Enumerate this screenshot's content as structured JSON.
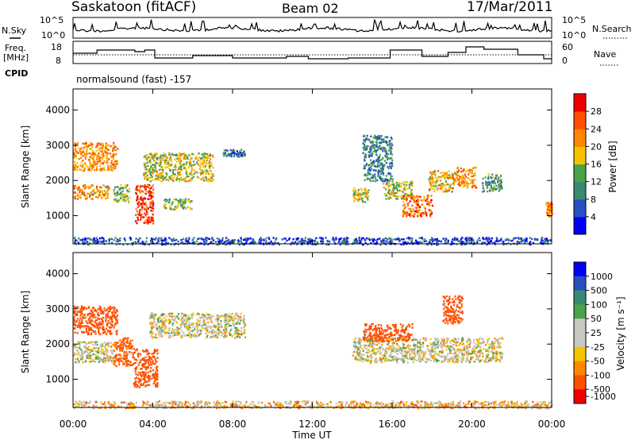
{
  "header": {
    "station": "Saskatoon (fitACF)",
    "beam": "Beam 02",
    "date": "17/Mar/2011"
  },
  "noise_panel": {
    "left_label": "N.Sky",
    "right_label": "N.Search",
    "y_top_left": "10^5",
    "y_bottom_left": "10^0",
    "y_top_right": "10^5",
    "y_bottom_right": "10^0"
  },
  "freq_panel": {
    "left_label_1": "Freq.",
    "left_label_2": "[MHz]",
    "right_label": "Nave",
    "freq_ticks": [
      "18",
      "8"
    ],
    "nave_ticks": [
      "60",
      "0"
    ]
  },
  "cpid": {
    "label": "CPID",
    "value": "normalsound (fast) -157"
  },
  "colors": {
    "power": [
      "#0000ff",
      "#2850c0",
      "#3a8a72",
      "#4aa34a",
      "#f5c400",
      "#ff8800",
      "#ff5000",
      "#ee0000"
    ],
    "velocity": [
      "#0000ff",
      "#2850c0",
      "#3a8a72",
      "#4aa34a",
      "#c8c8c2",
      "#c8c8c2",
      "#f5c400",
      "#ff8800",
      "#ff5000",
      "#ee0000"
    ],
    "ground": "#bdbdb6"
  },
  "chart_data": [
    {
      "type": "heatmap",
      "name": "power",
      "ylabel": "Slant Range [km]",
      "ylim": [
        200,
        4600
      ],
      "yticks": [
        "1000",
        "2000",
        "3000",
        "4000"
      ],
      "colorbar": {
        "label": "Power [dB]",
        "ticks": [
          "4",
          "8",
          "12",
          "16",
          "20",
          "24",
          "28"
        ],
        "range": [
          0,
          32
        ]
      },
      "regions": [
        {
          "t0": 0.0,
          "t1": 2.2,
          "r0": 2300,
          "r1": 3100,
          "v": 22
        },
        {
          "t0": 0.0,
          "t1": 1.8,
          "r0": 1500,
          "r1": 1900,
          "v": 21
        },
        {
          "t0": 2.0,
          "t1": 2.8,
          "r0": 1400,
          "r1": 1900,
          "v": 14
        },
        {
          "t0": 3.1,
          "t1": 4.0,
          "r0": 800,
          "r1": 1900,
          "v": 27
        },
        {
          "t0": 3.5,
          "t1": 7.0,
          "r0": 2000,
          "r1": 2800,
          "v": 17
        },
        {
          "t0": 4.5,
          "t1": 6.0,
          "r0": 1200,
          "r1": 1500,
          "v": 14
        },
        {
          "t0": 7.5,
          "t1": 8.6,
          "r0": 2700,
          "r1": 2900,
          "v": 9
        },
        {
          "t0": 14.0,
          "t1": 14.8,
          "r0": 1400,
          "r1": 1800,
          "v": 18
        },
        {
          "t0": 14.5,
          "t1": 16.0,
          "r0": 2000,
          "r1": 3300,
          "v": 10
        },
        {
          "t0": 15.5,
          "t1": 17.0,
          "r0": 1500,
          "r1": 2000,
          "v": 16
        },
        {
          "t0": 16.5,
          "t1": 18.0,
          "r0": 1000,
          "r1": 1600,
          "v": 24
        },
        {
          "t0": 17.8,
          "t1": 19.2,
          "r0": 1700,
          "r1": 2300,
          "v": 20
        },
        {
          "t0": 19.2,
          "t1": 20.2,
          "r0": 1800,
          "r1": 2400,
          "v": 22
        },
        {
          "t0": 20.5,
          "t1": 21.5,
          "r0": 1700,
          "r1": 2200,
          "v": 12
        },
        {
          "t0": 23.7,
          "t1": 24.0,
          "r0": 1000,
          "r1": 1400,
          "v": 22
        },
        {
          "t0": 0.0,
          "t1": 24.0,
          "r0": 200,
          "r1": 400,
          "v": 6
        }
      ]
    },
    {
      "type": "heatmap",
      "name": "velocity",
      "ylabel": "Slant Range [km]",
      "xlabel": "Time UT",
      "xticks": [
        "00:00",
        "04:00",
        "08:00",
        "12:00",
        "16:00",
        "20:00",
        "00:00"
      ],
      "xlim": [
        0,
        24
      ],
      "ylim": [
        200,
        4600
      ],
      "yticks": [
        "1000",
        "2000",
        "3000",
        "4000"
      ],
      "colorbar": {
        "label": "Velocity [m s⁻¹]",
        "ticks": [
          "1000",
          "500",
          "100",
          "50",
          "25",
          "-25",
          "-50",
          "-100",
          "-500",
          "-1000"
        ]
      },
      "regions": [
        {
          "t0": 0.0,
          "t1": 2.2,
          "r0": 2300,
          "r1": 3100,
          "v": -200
        },
        {
          "t0": 0.0,
          "t1": 2.0,
          "r0": 1500,
          "r1": 2100,
          "v": 0
        },
        {
          "t0": 2.0,
          "t1": 3.0,
          "r0": 1400,
          "r1": 2200,
          "v": -150
        },
        {
          "t0": 3.0,
          "t1": 4.2,
          "r0": 800,
          "r1": 1900,
          "v": -300
        },
        {
          "t0": 3.8,
          "t1": 8.6,
          "r0": 2200,
          "r1": 2900,
          "v": 0
        },
        {
          "t0": 14.0,
          "t1": 21.5,
          "r0": 1500,
          "r1": 2200,
          "v": 0
        },
        {
          "t0": 14.5,
          "t1": 17.0,
          "r0": 2100,
          "r1": 2600,
          "v": -200
        },
        {
          "t0": 18.5,
          "t1": 19.5,
          "r0": 2600,
          "r1": 3400,
          "v": -300
        },
        {
          "t0": 0.0,
          "t1": 24.0,
          "r0": 200,
          "r1": 400,
          "v": -40
        }
      ]
    }
  ]
}
